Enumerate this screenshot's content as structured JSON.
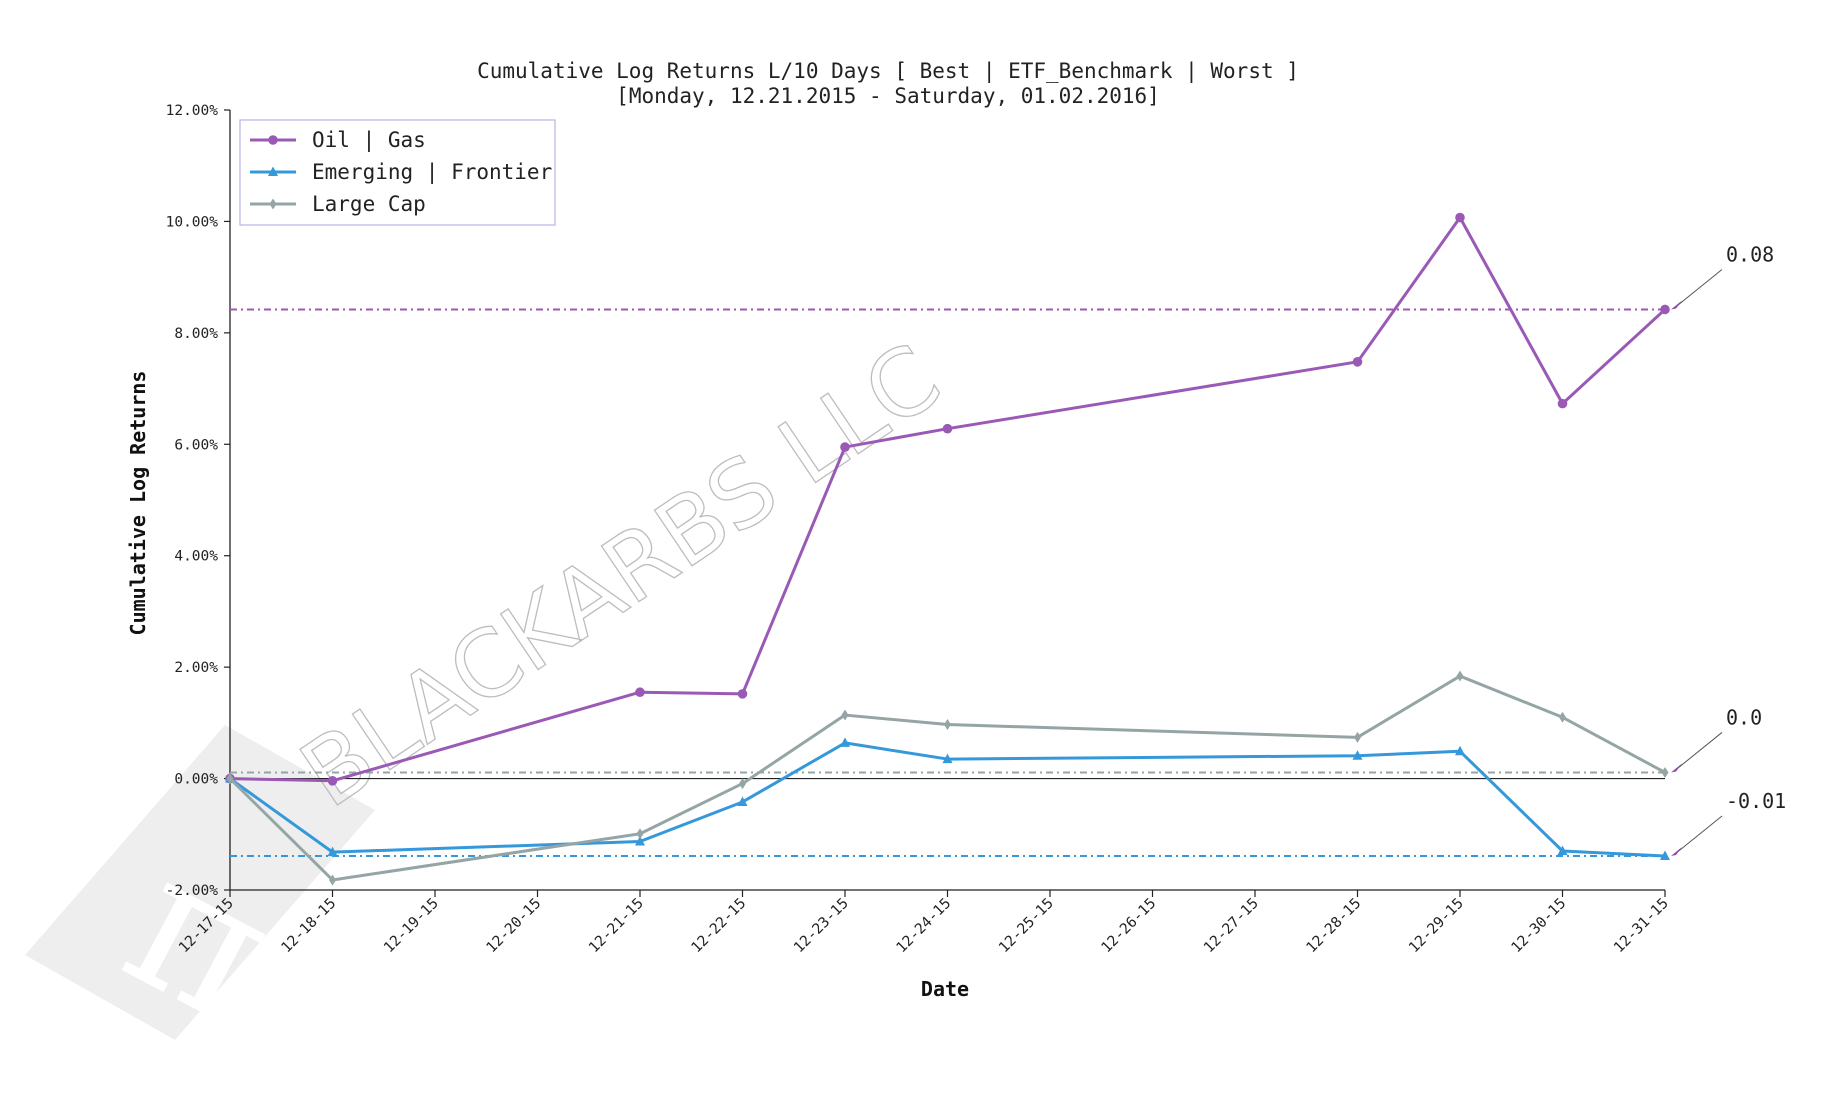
{
  "chart_data": {
    "type": "line",
    "title": "Cumulative Log Returns L/10 Days [ Best | ETF_Benchmark | Worst ]",
    "subtitle": "[Monday, 12.21.2015 - Saturday, 01.02.2016]",
    "xlabel": "Date",
    "ylabel": "Cumulative Log Returns",
    "watermark": "BLACKARBS LLC",
    "x_ticks": [
      "12-17-15",
      "12-18-15",
      "12-19-15",
      "12-20-15",
      "12-21-15",
      "12-22-15",
      "12-23-15",
      "12-24-15",
      "12-25-15",
      "12-26-15",
      "12-27-15",
      "12-28-15",
      "12-29-15",
      "12-30-15",
      "12-31-15"
    ],
    "y_ticks": [
      "-2.00%",
      "0.00%",
      "2.00%",
      "4.00%",
      "6.00%",
      "8.00%",
      "10.00%",
      "12.00%"
    ],
    "ylim": [
      -2,
      12
    ],
    "legend_position": "top-left",
    "grid": false,
    "zero_line": true,
    "series": [
      {
        "name": "Oil | Gas",
        "color": "#9b59b6",
        "marker": "circle",
        "x": [
          "12-17-15",
          "12-18-15",
          "12-21-15",
          "12-22-15",
          "12-23-15",
          "12-24-15",
          "12-28-15",
          "12-29-15",
          "12-30-15",
          "12-31-15"
        ],
        "y": [
          0.0,
          -0.04,
          1.55,
          1.52,
          5.95,
          6.28,
          7.48,
          10.07,
          6.73,
          8.42
        ],
        "final_line": 8.42,
        "annotation": "0.08"
      },
      {
        "name": "Emerging | Frontier",
        "color": "#3498db",
        "marker": "triangle",
        "x": [
          "12-17-15",
          "12-18-15",
          "12-21-15",
          "12-22-15",
          "12-23-15",
          "12-24-15",
          "12-28-15",
          "12-29-15",
          "12-30-15",
          "12-31-15"
        ],
        "y": [
          0.0,
          -1.32,
          -1.13,
          -0.42,
          0.64,
          0.35,
          0.41,
          0.49,
          -1.3,
          -1.39
        ],
        "final_line": -1.39,
        "annotation": "-0.01"
      },
      {
        "name": "Large Cap",
        "color": "#95a5a6",
        "marker": "diamond",
        "x": [
          "12-17-15",
          "12-18-15",
          "12-21-15",
          "12-22-15",
          "12-23-15",
          "12-24-15",
          "12-28-15",
          "12-29-15",
          "12-30-15",
          "12-31-15"
        ],
        "y": [
          0.0,
          -1.82,
          -0.99,
          -0.09,
          1.14,
          0.97,
          0.74,
          1.84,
          1.1,
          0.11
        ],
        "final_line": 0.11,
        "annotation": "0.0"
      }
    ]
  }
}
